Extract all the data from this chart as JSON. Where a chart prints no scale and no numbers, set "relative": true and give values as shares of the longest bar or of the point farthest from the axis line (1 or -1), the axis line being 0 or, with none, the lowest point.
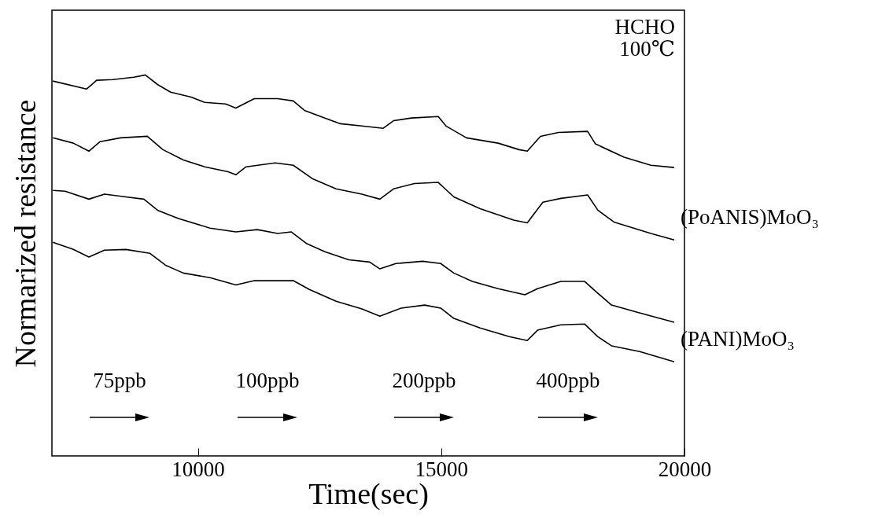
{
  "chart_data": {
    "type": "line",
    "xlabel": "Time(sec)",
    "ylabel": "Normarized resistance",
    "relative": true,
    "xlim": [
      7000,
      20000
    ],
    "xticks": [
      10000,
      15000,
      20000
    ],
    "marker": "none",
    "line_style": "solid",
    "annotations": [
      "HCHO",
      "100℃",
      "75ppb",
      "100ppb",
      "200ppb",
      "400ppb"
    ],
    "series": [
      {
        "color": "#000000",
        "x": [
          7020,
          7710,
          7920,
          8250,
          8680,
          8920,
          9170,
          9440,
          9860,
          10140,
          10570,
          10780,
          11160,
          11640,
          11960,
          12190,
          12610,
          12930,
          13370,
          13810,
          14020,
          14390,
          14940,
          15100,
          15520,
          16170,
          16600,
          16770,
          17040,
          17410,
          18010,
          18170,
          18760,
          19310,
          19790
        ],
        "values": [
          0.984,
          0.963,
          0.986,
          0.988,
          0.994,
          1.0,
          0.975,
          0.955,
          0.942,
          0.928,
          0.924,
          0.913,
          0.938,
          0.938,
          0.932,
          0.907,
          0.887,
          0.872,
          0.866,
          0.86,
          0.88,
          0.887,
          0.891,
          0.866,
          0.835,
          0.821,
          0.804,
          0.8,
          0.839,
          0.849,
          0.852,
          0.819,
          0.784,
          0.763,
          0.757
        ]
      },
      {
        "name": "(PoANIS)MoO₃",
        "color": "#000000",
        "x": [
          7020,
          7440,
          7760,
          7990,
          8410,
          8960,
          9280,
          9700,
          10140,
          10620,
          10780,
          10990,
          11590,
          11960,
          12350,
          12840,
          13370,
          13740,
          14020,
          14450,
          14940,
          15260,
          15800,
          16490,
          16770,
          17090,
          17460,
          18010,
          18220,
          18550,
          19310,
          19790
        ],
        "values": [
          0.835,
          0.821,
          0.8,
          0.825,
          0.835,
          0.839,
          0.804,
          0.777,
          0.759,
          0.746,
          0.738,
          0.759,
          0.769,
          0.763,
          0.728,
          0.701,
          0.687,
          0.674,
          0.701,
          0.715,
          0.718,
          0.68,
          0.649,
          0.619,
          0.612,
          0.666,
          0.676,
          0.685,
          0.645,
          0.614,
          0.584,
          0.567
        ]
      },
      {
        "color": "#000000",
        "x": [
          7020,
          7270,
          7760,
          8080,
          8520,
          8890,
          9170,
          9600,
          10250,
          10780,
          11220,
          11640,
          11920,
          12240,
          12610,
          13100,
          13530,
          13740,
          14070,
          14620,
          14990,
          15260,
          15640,
          16170,
          16720,
          16980,
          17460,
          17950,
          18220,
          18500,
          19030,
          19790
        ],
        "values": [
          0.697,
          0.695,
          0.674,
          0.687,
          0.68,
          0.674,
          0.645,
          0.623,
          0.598,
          0.588,
          0.594,
          0.584,
          0.588,
          0.557,
          0.536,
          0.515,
          0.509,
          0.491,
          0.505,
          0.511,
          0.505,
          0.48,
          0.458,
          0.439,
          0.423,
          0.439,
          0.458,
          0.458,
          0.427,
          0.396,
          0.377,
          0.351
        ]
      },
      {
        "name": "(PANI)MoO₃",
        "color": "#000000",
        "x": [
          7020,
          7440,
          7760,
          8080,
          8520,
          9010,
          9330,
          9700,
          10250,
          10780,
          11160,
          11960,
          12290,
          12840,
          13370,
          13740,
          14180,
          14660,
          14990,
          15260,
          15800,
          16400,
          16770,
          16980,
          17460,
          17950,
          18220,
          18500,
          19080,
          19790
        ],
        "values": [
          0.561,
          0.542,
          0.522,
          0.54,
          0.542,
          0.532,
          0.501,
          0.48,
          0.468,
          0.449,
          0.46,
          0.46,
          0.437,
          0.406,
          0.386,
          0.367,
          0.388,
          0.396,
          0.388,
          0.361,
          0.336,
          0.313,
          0.303,
          0.33,
          0.344,
          0.346,
          0.313,
          0.289,
          0.274,
          0.247
        ]
      }
    ]
  }
}
